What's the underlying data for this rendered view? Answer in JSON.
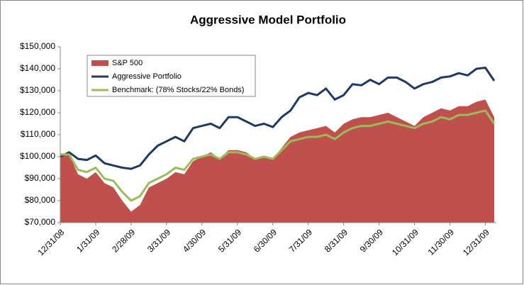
{
  "chart_data": {
    "type": "area_line",
    "title": "Aggressive Model Portfolio",
    "categories": [
      "12/31/08",
      null,
      null,
      null,
      "1/31/09",
      null,
      null,
      null,
      "2/28/09",
      null,
      null,
      null,
      "3/31/09",
      null,
      null,
      null,
      "4/30/09",
      null,
      null,
      null,
      "5/31/09",
      null,
      null,
      null,
      "6/30/09",
      null,
      null,
      null,
      "7/31/09",
      null,
      null,
      null,
      "8/31/09",
      null,
      null,
      null,
      "9/30/09",
      null,
      null,
      null,
      "10/31/09",
      null,
      null,
      null,
      "11/30/09",
      null,
      null,
      null,
      "12/31/09",
      null
    ],
    "series": [
      {
        "name": "S&P 500",
        "color": "#c0504d",
        "kind": "area",
        "values": [
          100000,
          101000,
          92000,
          90000,
          93000,
          88000,
          86000,
          80000,
          75000,
          78000,
          86000,
          88000,
          90000,
          93000,
          92000,
          98000,
          100000,
          102000,
          99000,
          103000,
          103000,
          102000,
          99000,
          100000,
          99000,
          104000,
          109000,
          111000,
          112000,
          113000,
          114000,
          111000,
          115000,
          117000,
          118000,
          118000,
          119000,
          120000,
          118000,
          116000,
          114000,
          118000,
          120000,
          122000,
          121000,
          123000,
          123000,
          125000,
          126000,
          118000
        ]
      },
      {
        "name": "Aggressive Portfolio",
        "color": "#1f3864",
        "kind": "line",
        "values": [
          100000,
          102000,
          99000,
          98500,
          100500,
          97000,
          96000,
          95000,
          94500,
          96000,
          101000,
          105000,
          107000,
          109000,
          107000,
          113000,
          114000,
          115000,
          113000,
          118000,
          118000,
          116000,
          114000,
          115000,
          113500,
          118000,
          121000,
          127000,
          129000,
          128000,
          131000,
          126000,
          128000,
          133000,
          132500,
          135000,
          133000,
          136000,
          136000,
          134000,
          131000,
          133000,
          134000,
          136000,
          136500,
          138000,
          137000,
          140000,
          140500,
          134500
        ]
      },
      {
        "name": "Benchmark: (78% Stocks/22% Bonds)",
        "color": "#9bbb59",
        "kind": "line",
        "values": [
          101000,
          101000,
          94000,
          93000,
          95000,
          90000,
          89000,
          84000,
          80000,
          82000,
          88000,
          90000,
          92000,
          95000,
          94000,
          99000,
          100000,
          101000,
          99000,
          102000,
          102000,
          101000,
          99000,
          100000,
          99000,
          103000,
          107000,
          108000,
          109000,
          109000,
          110000,
          108000,
          111000,
          113000,
          114000,
          114000,
          115000,
          116000,
          115000,
          114000,
          113000,
          115000,
          116000,
          118000,
          117000,
          119000,
          119000,
          120000,
          121000,
          115000
        ]
      }
    ],
    "ylim": [
      70000,
      150000
    ],
    "yticks": [
      {
        "value": 70000,
        "label": "$70,000"
      },
      {
        "value": 80000,
        "label": "$80,000"
      },
      {
        "value": 90000,
        "label": "$90,000"
      },
      {
        "value": 100000,
        "label": "$100,000"
      },
      {
        "value": 110000,
        "label": "$110,000"
      },
      {
        "value": 120000,
        "label": "$120,000"
      },
      {
        "value": 130000,
        "label": "$130,000"
      },
      {
        "value": 140000,
        "label": "$140,000"
      },
      {
        "value": 150000,
        "label": "$150,000"
      }
    ],
    "grid": false
  }
}
